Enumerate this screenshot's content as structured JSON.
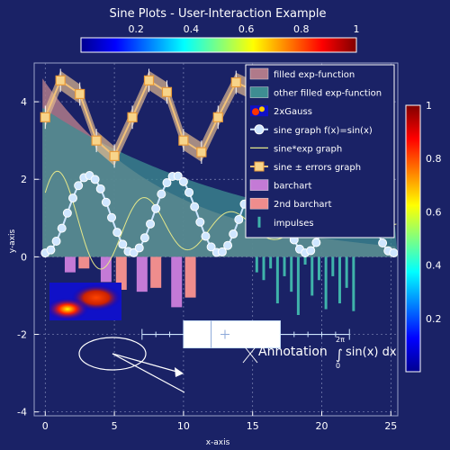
{
  "title": "Sine Plots - User-Interaction Example",
  "chart_data": {
    "type": "line",
    "xlabel": "x-axis",
    "ylabel": "y-axis",
    "xlim": [
      -0.8,
      25.5
    ],
    "ylim": [
      -4.1,
      5.0
    ],
    "xticks": [
      0,
      5,
      10,
      15,
      20,
      25
    ],
    "yticks": [
      -4,
      -2,
      0,
      2,
      4
    ],
    "grid": true,
    "legend_position": "top-right",
    "colorscale": {
      "name": "jet",
      "top_ticks": [
        "0.2",
        "0.4",
        "0.6",
        "0.8",
        "1"
      ],
      "right_ticks": [
        "1",
        "0.8",
        "0.6",
        "0.4",
        "0.2"
      ]
    },
    "legend": [
      {
        "label": "filled exp-function",
        "symbol": "fill",
        "color": "#b07a8a"
      },
      {
        "label": "other filled exp-function",
        "symbol": "fill",
        "color": "#3e8d92"
      },
      {
        "label": "2xGauss",
        "symbol": "image",
        "color": "#ff3300"
      },
      {
        "label": "sine graph f(x)=sin(x)",
        "symbol": "line-circle",
        "color": "#cfe6ff"
      },
      {
        "label": "sine*exp graph",
        "symbol": "line",
        "color": "#e6e88a"
      },
      {
        "label": "sine ± errors graph",
        "symbol": "line-square",
        "color": "#f2c27a"
      },
      {
        "label": "barchart",
        "symbol": "bar",
        "color": "#c47ad6"
      },
      {
        "label": "2nd barchart",
        "symbol": "bar",
        "color": "#ef8d8d"
      },
      {
        "label": "impulses",
        "symbol": "impulse",
        "color": "#3fb3aa"
      }
    ],
    "series": [
      {
        "name": "sine ± errors graph",
        "x": [
          0,
          1.1,
          2.5,
          3.7,
          5,
          6.3,
          7.5,
          8.8,
          10,
          11.3,
          12.5,
          13.8,
          15
        ],
        "y": [
          3.6,
          4.55,
          4.2,
          3.0,
          2.6,
          3.6,
          4.55,
          4.25,
          3.0,
          2.7,
          3.6,
          4.5,
          4.3
        ]
      },
      {
        "name": "barchart",
        "x": [
          1.8,
          4.4,
          7.0,
          9.5
        ],
        "y": [
          -0.4,
          -0.65,
          -0.9,
          -1.3
        ]
      },
      {
        "name": "2nd barchart",
        "x": [
          2.8,
          5.5,
          8.0,
          10.5
        ],
        "y": [
          -0.3,
          -0.85,
          -0.8,
          -1.05
        ]
      },
      {
        "name": "impulses",
        "x": [
          15.3,
          15.8,
          16.3,
          16.8,
          17.3,
          17.8,
          18.3,
          18.8,
          19.3,
          19.8,
          20.3,
          20.8,
          21.3,
          21.8,
          22.3
        ],
        "y": [
          -0.4,
          -0.6,
          -0.3,
          -1.2,
          -0.5,
          -0.9,
          -1.5,
          -0.2,
          -1.0,
          -0.6,
          -1.35,
          -0.5,
          -1.2,
          -0.8,
          -1.4
        ]
      },
      {
        "name": "boxplot",
        "x": [
          7,
          10,
          12,
          17,
          22
        ],
        "y": [
          -2,
          -2,
          -2,
          -2,
          -2
        ]
      }
    ],
    "annotation": {
      "text": "Annotation",
      "formula_upper": "2π",
      "formula_lower": "0",
      "formula_body": "sin(x) dx"
    }
  }
}
